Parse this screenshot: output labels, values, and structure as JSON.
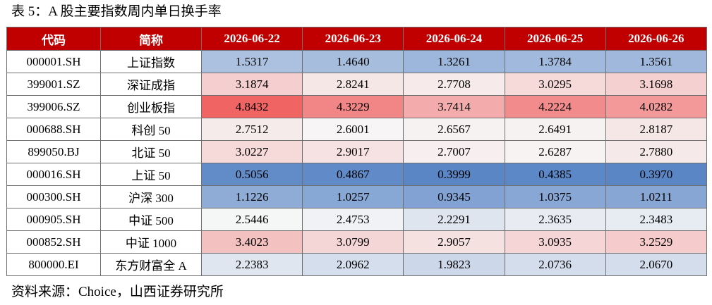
{
  "caption": "表 5：A 股主要指数周内单日换手率",
  "source": "资料来源：Choice，山西证券研究所",
  "colors": {
    "header_bg": "#c00000",
    "low": "#5a86c6",
    "mid": "#f7f7f7",
    "high": "#f06464"
  },
  "chart_data": {
    "type": "table",
    "columns": [
      "代码",
      "简称",
      "2026-06-22",
      "2026-06-23",
      "2026-06-24",
      "2026-06-25",
      "2026-06-26"
    ],
    "rows": [
      {
        "code": "000001.SH",
        "name": "上证指数",
        "values": [
          "1.5317",
          "1.4640",
          "1.3261",
          "1.3784",
          "1.3561"
        ]
      },
      {
        "code": "399001.SZ",
        "name": "深证成指",
        "values": [
          "3.1874",
          "2.8241",
          "2.7708",
          "3.0295",
          "3.1698"
        ]
      },
      {
        "code": "399006.SZ",
        "name": "创业板指",
        "values": [
          "4.8432",
          "4.3229",
          "3.7414",
          "4.2224",
          "4.0282"
        ]
      },
      {
        "code": "000688.SH",
        "name": "科创 50",
        "values": [
          "2.7512",
          "2.6001",
          "2.6567",
          "2.6491",
          "2.8187"
        ]
      },
      {
        "code": "899050.BJ",
        "name": "北证 50",
        "values": [
          "3.0227",
          "2.9017",
          "2.7007",
          "2.6287",
          "2.7880"
        ]
      },
      {
        "code": "000016.SH",
        "name": "上证 50",
        "values": [
          "0.5056",
          "0.4867",
          "0.3999",
          "0.4385",
          "0.3970"
        ]
      },
      {
        "code": "000300.SH",
        "name": "沪深 300",
        "values": [
          "1.1226",
          "1.0257",
          "0.9345",
          "1.0375",
          "1.0211"
        ]
      },
      {
        "code": "000905.SH",
        "name": "中证 500",
        "values": [
          "2.5446",
          "2.4753",
          "2.2291",
          "2.3635",
          "2.3483"
        ]
      },
      {
        "code": "000852.SH",
        "name": "中证 1000",
        "values": [
          "3.4023",
          "3.0799",
          "2.9057",
          "3.0935",
          "3.2529"
        ]
      },
      {
        "code": "800000.EI",
        "name": "东方财富全 A",
        "values": [
          "2.2383",
          "2.0962",
          "1.9823",
          "2.0736",
          "2.0670"
        ]
      }
    ]
  }
}
